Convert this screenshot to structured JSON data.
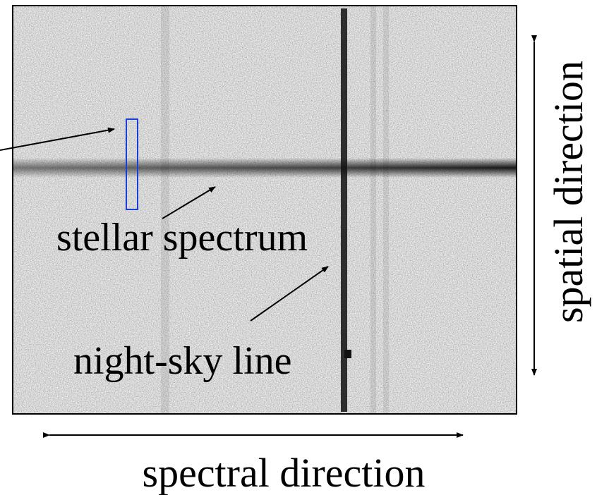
{
  "labels": {
    "stellar_spectrum": "stellar spectrum",
    "night_sky_line": "night-sky line",
    "spectral_direction": "spectral direction",
    "spatial_direction": "spatial direction"
  }
}
